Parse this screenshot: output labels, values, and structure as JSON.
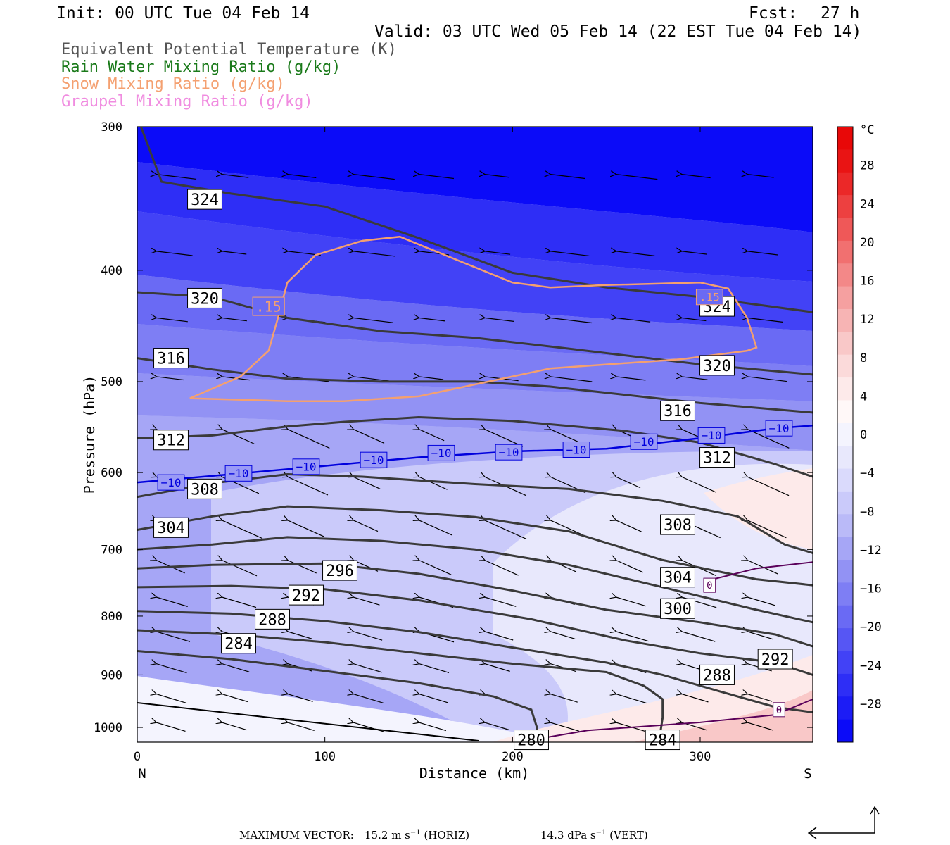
{
  "header": {
    "init": "Init: 00 UTC Tue 04 Feb 14",
    "fcst_label": "Fcst:",
    "fcst_value": "27 h",
    "valid": "Valid: 03 UTC Wed 05 Feb 14 (22 EST Tue 04 Feb 14)"
  },
  "legend": [
    {
      "label": "Equivalent Potential Temperature (K)",
      "color": "#555555"
    },
    {
      "label": "Rain Water Mixing Ratio (g/kg)",
      "color": "#1a7a1a"
    },
    {
      "label": "Snow Mixing Ratio (g/kg)",
      "color": "#f4a070"
    },
    {
      "label": "Graupel Mixing Ratio (g/kg)",
      "color": "#f08ce0"
    }
  ],
  "chart_data": {
    "type": "cross-section",
    "xlabel": "Distance (km)",
    "ylabel": "Pressure (hPa)",
    "xlim": [
      0,
      360
    ],
    "ylim": [
      1030,
      300
    ],
    "y_log": true,
    "x_ticks": [
      "0",
      "100",
      "200",
      "300"
    ],
    "y_ticks": [
      "300",
      "400",
      "500",
      "600",
      "700",
      "800",
      "900",
      "1000"
    ],
    "left_end_label": "N",
    "right_end_label": "S",
    "colorbar": {
      "unit": "°C",
      "labels": [
        "28",
        "24",
        "20",
        "16",
        "12",
        "8",
        "4",
        "0",
        "−4",
        "−8",
        "−12",
        "−16",
        "−20",
        "−24",
        "−28"
      ],
      "colors": [
        "#0b0bf8",
        "#1c1cf6",
        "#2e2ef6",
        "#4242f6",
        "#5656f4",
        "#6a6af4",
        "#7e7ef4",
        "#9292f4",
        "#a6a6f6",
        "#babaf8",
        "#cacafa",
        "#dadafc",
        "#e8e8fc",
        "#f4f4fe",
        "#fff8f8",
        "#fdeaea",
        "#fbdada",
        "#f9c8c8",
        "#f7b4b4",
        "#f5a0a0",
        "#f38888",
        "#f17070",
        "#ef5858",
        "#ed4040",
        "#eb2828",
        "#e91414",
        "#e80808"
      ]
    },
    "theta_e_contours": [
      {
        "label": "324",
        "points": [
          [
            2,
            300
          ],
          [
            13,
            335
          ],
          [
            50,
            343
          ],
          [
            100,
            352
          ],
          [
            150,
            375
          ],
          [
            200,
            402
          ],
          [
            250,
            414
          ],
          [
            300,
            422
          ],
          [
            360,
            435
          ]
        ]
      },
      {
        "label": "320",
        "points": [
          [
            0,
            418
          ],
          [
            40,
            422
          ],
          [
            80,
            440
          ],
          [
            130,
            452
          ],
          [
            180,
            458
          ],
          [
            230,
            468
          ],
          [
            300,
            483
          ],
          [
            360,
            493
          ]
        ]
      },
      {
        "label": "316",
        "points": [
          [
            0,
            477
          ],
          [
            40,
            488
          ],
          [
            80,
            497
          ],
          [
            130,
            500
          ],
          [
            180,
            500
          ],
          [
            220,
            505
          ],
          [
            300,
            522
          ],
          [
            360,
            532
          ]
        ]
      },
      {
        "label": "312",
        "points": [
          [
            0,
            560
          ],
          [
            40,
            557
          ],
          [
            80,
            547
          ],
          [
            110,
            542
          ],
          [
            150,
            537
          ],
          [
            200,
            541
          ],
          [
            260,
            552
          ],
          [
            300,
            565
          ],
          [
            340,
            590
          ],
          [
            360,
            605
          ]
        ]
      },
      {
        "label": "308",
        "points": [
          [
            0,
            630
          ],
          [
            40,
            613
          ],
          [
            80,
            602
          ],
          [
            120,
            605
          ],
          [
            180,
            614
          ],
          [
            230,
            620
          ],
          [
            280,
            635
          ],
          [
            320,
            655
          ],
          [
            345,
            693
          ],
          [
            360,
            705
          ]
        ]
      },
      {
        "label": "304",
        "points": [
          [
            0,
            673
          ],
          [
            40,
            655
          ],
          [
            80,
            642
          ],
          [
            130,
            647
          ],
          [
            180,
            656
          ],
          [
            230,
            675
          ],
          [
            280,
            715
          ],
          [
            330,
            743
          ],
          [
            360,
            752
          ]
        ]
      },
      {
        "label": "300",
        "points": [
          [
            0,
            700
          ],
          [
            40,
            693
          ],
          [
            80,
            683
          ],
          [
            130,
            688
          ],
          [
            180,
            700
          ],
          [
            230,
            722
          ],
          [
            280,
            755
          ],
          [
            330,
            790
          ],
          [
            360,
            810
          ]
        ]
      },
      {
        "label": "296",
        "points": [
          [
            0,
            727
          ],
          [
            40,
            722
          ],
          [
            100,
            720
          ],
          [
            150,
            735
          ],
          [
            200,
            760
          ],
          [
            250,
            790
          ],
          [
            300,
            810
          ],
          [
            340,
            830
          ],
          [
            360,
            850
          ]
        ]
      },
      {
        "label": "292",
        "points": [
          [
            0,
            755
          ],
          [
            50,
            753
          ],
          [
            100,
            758
          ],
          [
            150,
            775
          ],
          [
            210,
            805
          ],
          [
            260,
            840
          ],
          [
            300,
            862
          ],
          [
            340,
            878
          ],
          [
            360,
            900
          ]
        ]
      },
      {
        "label": "288",
        "points": [
          [
            0,
            792
          ],
          [
            50,
            796
          ],
          [
            100,
            808
          ],
          [
            150,
            826
          ],
          [
            200,
            852
          ],
          [
            250,
            878
          ],
          [
            280,
            900
          ],
          [
            310,
            930
          ],
          [
            340,
            960
          ],
          [
            360,
            970
          ]
        ]
      },
      {
        "label": "284",
        "points": [
          [
            0,
            823
          ],
          [
            50,
            830
          ],
          [
            100,
            843
          ],
          [
            150,
            862
          ],
          [
            200,
            880
          ],
          [
            250,
            895
          ],
          [
            270,
            920
          ],
          [
            280,
            945
          ],
          [
            280,
            980
          ],
          [
            278,
            1030
          ]
        ]
      },
      {
        "label": "280",
        "points": [
          [
            0,
            858
          ],
          [
            50,
            872
          ],
          [
            100,
            893
          ],
          [
            150,
            915
          ],
          [
            190,
            940
          ],
          [
            210,
            965
          ],
          [
            213,
            1000
          ],
          [
            213,
            1030
          ]
        ]
      }
    ],
    "temperature_contours": [
      {
        "label": "−10",
        "points": [
          [
            0,
            612
          ],
          [
            50,
            602
          ],
          [
            100,
            592
          ],
          [
            150,
            582
          ],
          [
            200,
            575
          ],
          [
            250,
            572
          ],
          [
            300,
            560
          ],
          [
            340,
            549
          ],
          [
            360,
            546
          ]
        ]
      },
      {
        "label": "0",
        "points": [
          [
            304,
            745
          ],
          [
            330,
            727
          ],
          [
            360,
            718
          ]
        ]
      },
      {
        "label": "0",
        "points": [
          [
            203,
            1030
          ],
          [
            240,
            1006
          ],
          [
            300,
            990
          ],
          [
            340,
            975
          ],
          [
            360,
            945
          ]
        ]
      }
    ],
    "snow_contour": {
      "label": ".15",
      "points": [
        [
          28,
          517
        ],
        [
          55,
          495
        ],
        [
          70,
          470
        ],
        [
          75,
          440
        ],
        [
          80,
          410
        ],
        [
          95,
          388
        ],
        [
          120,
          377
        ],
        [
          140,
          374
        ],
        [
          200,
          410
        ],
        [
          220,
          414
        ],
        [
          250,
          412
        ],
        [
          300,
          410
        ],
        [
          315,
          415
        ],
        [
          325,
          440
        ],
        [
          330,
          467
        ],
        [
          325,
          470
        ],
        [
          290,
          478
        ],
        [
          220,
          487
        ],
        [
          150,
          515
        ],
        [
          110,
          520
        ],
        [
          80,
          520
        ],
        [
          28,
          517
        ]
      ]
    },
    "max_vector": {
      "horiz": "15.2",
      "vert": "14.3"
    }
  },
  "footer": {
    "label": "MAXIMUM VECTOR:",
    "horiz_value": "15.2",
    "horiz_unit": "m s",
    "horiz_exp": "−1",
    "horiz_suffix": "(HORIZ)",
    "vert_value": "14.3",
    "vert_unit": "dPa s",
    "vert_exp": "−1",
    "vert_suffix": "(VERT)"
  }
}
